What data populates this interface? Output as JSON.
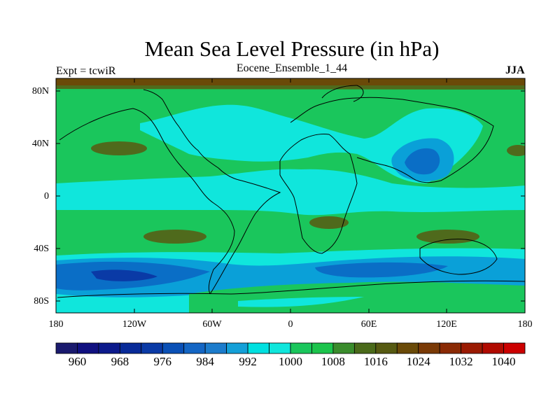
{
  "title": "Mean Sea Level Pressure (in hPa)",
  "subtitle_left": "Expt = tcwiR",
  "subtitle_center": "Eocene_Ensemble_1_44",
  "subtitle_right": "JJA",
  "lat_ticks": [
    "80N",
    "40N",
    "0",
    "40S",
    "80S"
  ],
  "lon_ticks": [
    "180",
    "120W",
    "60W",
    "0",
    "60E",
    "120E",
    "180"
  ],
  "colorbar": {
    "labels": [
      "960",
      "968",
      "976",
      "984",
      "992",
      "1000",
      "1008",
      "1016",
      "1024",
      "1032",
      "1040"
    ],
    "colors": [
      "#1a1a6e",
      "#101080",
      "#0c1a8c",
      "#082a98",
      "#0a3aa6",
      "#0a50b6",
      "#1466c4",
      "#1c7ccc",
      "#14a0d8",
      "#00e0e0",
      "#10e6dc",
      "#1ac65c",
      "#1cc44c",
      "#3a8c2c",
      "#4a6a1a",
      "#565a12",
      "#6a4a08",
      "#7a3a06",
      "#8a2a04",
      "#9a1a02",
      "#b00a00",
      "#cc0000"
    ]
  },
  "map_colors": {
    "green": "#1ac65c",
    "cyan": "#10e6dc",
    "olive": "#4f6a1c",
    "lightblue": "#0aa0d8",
    "blue": "#0a6ec6",
    "darkblue": "#0a3aa6",
    "brown": "#6a4a08"
  }
}
